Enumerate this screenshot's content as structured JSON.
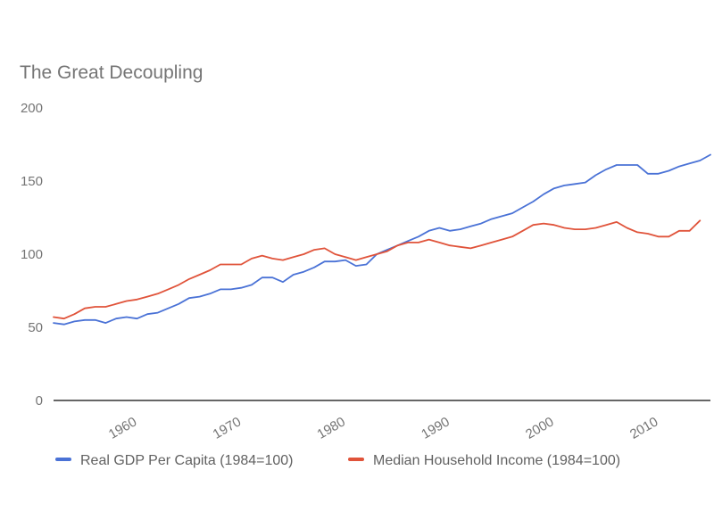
{
  "chart_data": {
    "type": "line",
    "title": "The Great Decoupling",
    "xlabel": "",
    "ylabel": "",
    "xlim": [
      1953,
      2015
    ],
    "ylim": [
      0,
      200
    ],
    "x_ticks": [
      1960,
      1970,
      1980,
      1990,
      2000,
      2010
    ],
    "y_ticks": [
      0,
      50,
      100,
      150,
      200
    ],
    "grid": false,
    "legend_position": "bottom",
    "x": [
      1953,
      1954,
      1955,
      1956,
      1957,
      1958,
      1959,
      1960,
      1961,
      1962,
      1963,
      1964,
      1965,
      1966,
      1967,
      1968,
      1969,
      1970,
      1971,
      1972,
      1973,
      1974,
      1975,
      1976,
      1977,
      1978,
      1979,
      1980,
      1981,
      1982,
      1983,
      1984,
      1985,
      1986,
      1987,
      1988,
      1989,
      1990,
      1991,
      1992,
      1993,
      1994,
      1995,
      1996,
      1997,
      1998,
      1999,
      2000,
      2001,
      2002,
      2003,
      2004,
      2005,
      2006,
      2007,
      2008,
      2009,
      2010,
      2011,
      2012,
      2013,
      2014,
      2015
    ],
    "series": [
      {
        "name": "Real GDP Per Capita (1984=100)",
        "color": "#4a72d6",
        "values": [
          53,
          52,
          54,
          55,
          55,
          53,
          56,
          57,
          56,
          59,
          60,
          63,
          66,
          70,
          71,
          73,
          76,
          76,
          77,
          79,
          84,
          84,
          81,
          86,
          88,
          91,
          95,
          95,
          96,
          92,
          93,
          100,
          103,
          106,
          109,
          112,
          116,
          118,
          116,
          117,
          119,
          121,
          124,
          126,
          128,
          132,
          136,
          141,
          145,
          147,
          148,
          149,
          154,
          158,
          161,
          161,
          161,
          155,
          155,
          157,
          160,
          162,
          164
        ],
        "values_tail": [
          168
        ]
      },
      {
        "name": "Median Household Income (1984=100)",
        "color": "#e0533a",
        "values": [
          57,
          56,
          59,
          63,
          64,
          64,
          66,
          68,
          69,
          71,
          73,
          76,
          79,
          83,
          86,
          89,
          93,
          93,
          93,
          97,
          99,
          97,
          96,
          98,
          100,
          103,
          104,
          100,
          98,
          96,
          98,
          100,
          102,
          106,
          108,
          108,
          110,
          108,
          106,
          105,
          104,
          106,
          108,
          110,
          112,
          116,
          120,
          121,
          120,
          118,
          117,
          117,
          118,
          120,
          122,
          118,
          115,
          114,
          112,
          112,
          116,
          116,
          123
        ],
        "values_tail": []
      }
    ]
  }
}
